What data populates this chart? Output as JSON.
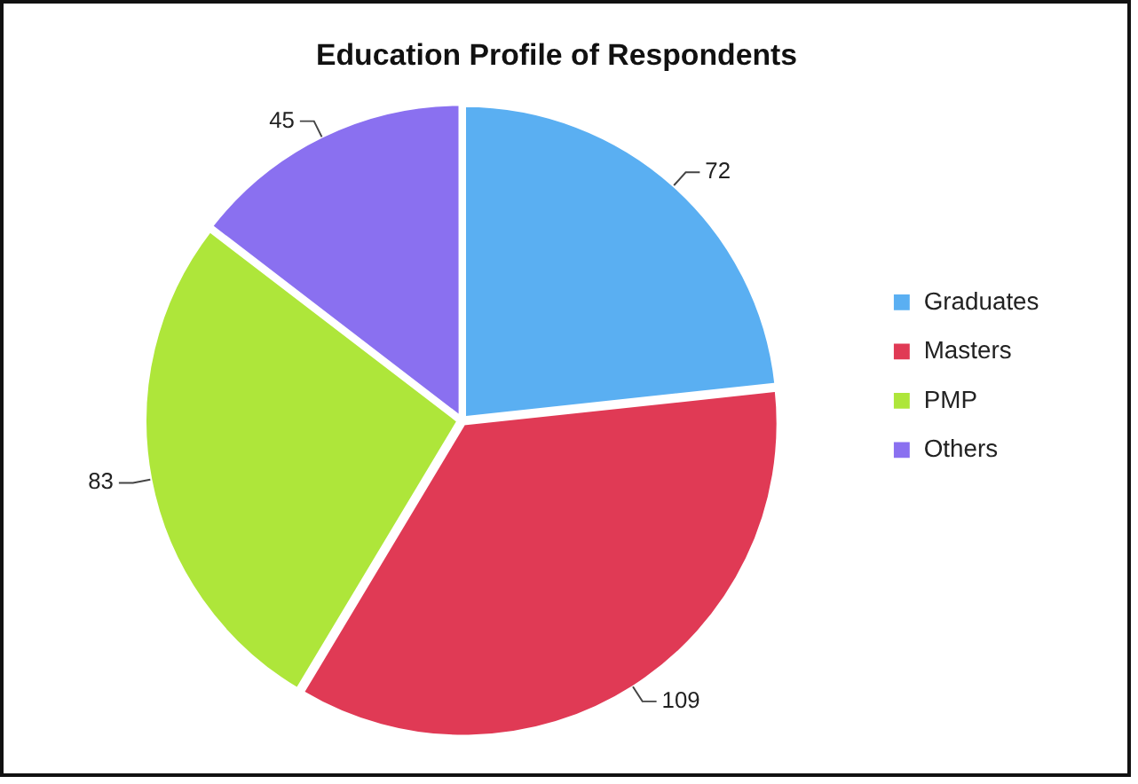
{
  "chart_data": {
    "type": "pie",
    "title": "Education Profile of Respondents",
    "categories": [
      "Graduates",
      "Masters",
      "PMP",
      "Others"
    ],
    "values": [
      72,
      109,
      83,
      45
    ],
    "colors": [
      "#5aaff2",
      "#e03a55",
      "#aee63a",
      "#8a70f0"
    ],
    "data_labels": true,
    "legend": "right"
  }
}
